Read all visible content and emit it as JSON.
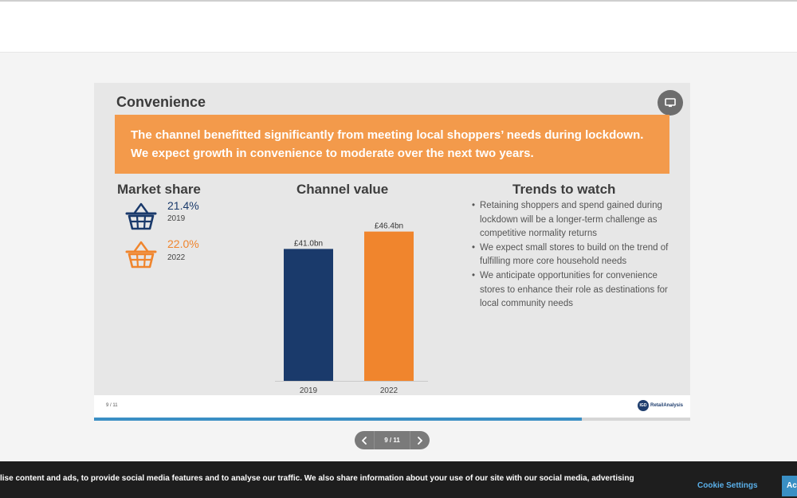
{
  "slide": {
    "title": "Convenience",
    "banner": "The channel benefitted significantly from meeting local shoppers’ needs during lockdown. We expect growth in convenience to moderate over the next two years.",
    "market_share": {
      "heading": "Market share",
      "entries": [
        {
          "value": "21.4%",
          "year": "2019",
          "color": "#1a3a6b"
        },
        {
          "value": "22.0%",
          "year": "2022",
          "color": "#f0852d"
        }
      ]
    },
    "channel_value": {
      "heading": "Channel value"
    },
    "trends": {
      "heading": "Trends to watch",
      "items": [
        "Retaining shoppers and spend gained during lockdown will be a longer-term challenge as competitive normality returns",
        "We expect small stores to build on the trend of fulfilling more core household needs",
        "We anticipate opportunities for convenience stores to enhance their role as destinations for local community needs"
      ]
    },
    "footer": {
      "page": "9 / 11",
      "logo_mark": "IGD",
      "logo_text": "RetailAnalysis"
    }
  },
  "chart_data": {
    "type": "bar",
    "title": "Channel value",
    "categories": [
      "2019",
      "2022"
    ],
    "values": [
      41.0,
      46.4
    ],
    "data_labels": [
      "£41.0bn",
      "£46.4bn"
    ],
    "colors": [
      "#1a3a6b",
      "#f0852d"
    ],
    "ylim": [
      0,
      52
    ]
  },
  "viewer": {
    "progress_fraction": 0.818,
    "progress_color": "#3a8fc4",
    "pager_label": "9 / 11",
    "prev_icon": "chevron-left-icon",
    "next_icon": "chevron-right-icon",
    "present_icon": "monitor-icon"
  },
  "cookie_banner": {
    "text": "lise content and ads, to provide social media features and to analyse our traffic. We also share information about your use of our site with our social media, advertising",
    "settings_label": "Cookie Settings",
    "accept_label": "Accept"
  }
}
